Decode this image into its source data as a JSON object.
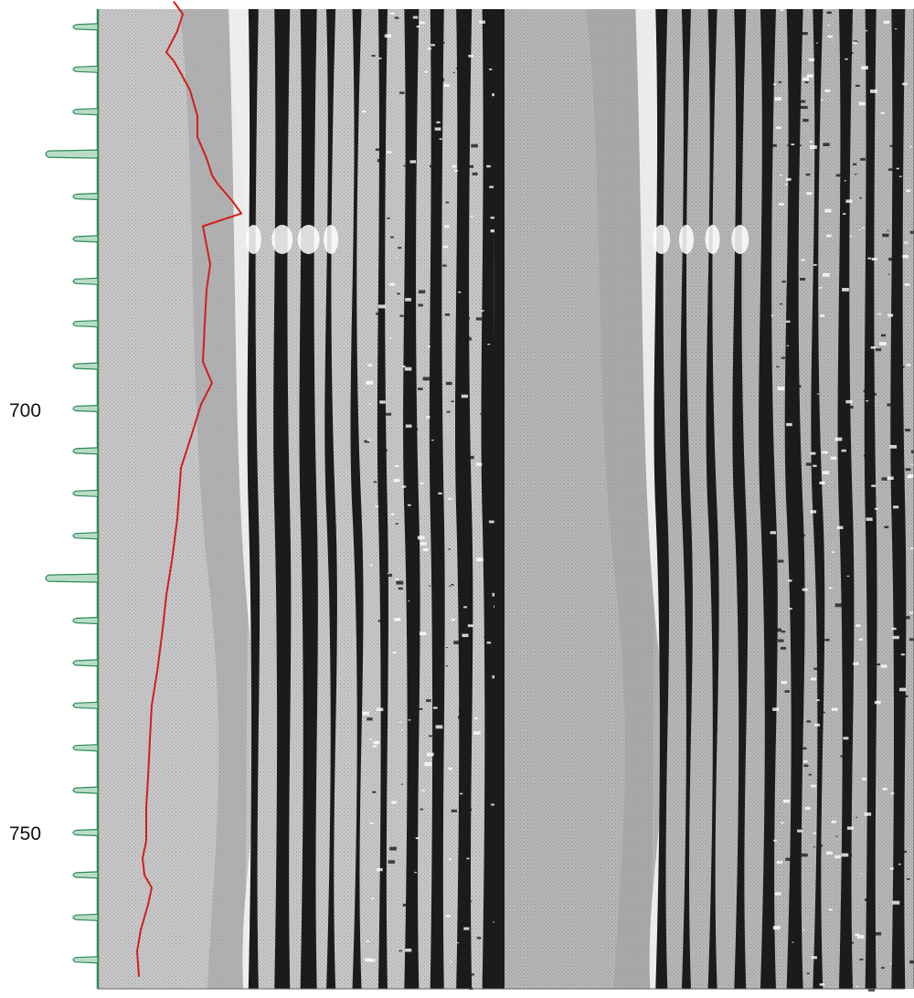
{
  "chart_data": {
    "type": "line",
    "title": "",
    "xlabel": "",
    "ylabel": "",
    "y_axis": {
      "orientation": "depth-increasing-downward",
      "range": [
        652,
        767
      ],
      "labeled_ticks": [
        {
          "value": 700,
          "label": "700"
        },
        {
          "value": 750,
          "label": "750"
        }
      ],
      "minor_tick_step": 5,
      "major_ticks": [
        670,
        720
      ]
    },
    "series": [
      {
        "role": "trace",
        "color": "#d21e1e",
        "x": [
          0.2,
          0.25,
          0.22,
          0.16,
          0.2,
          0.24,
          0.29,
          0.33,
          0.33,
          0.38,
          0.41,
          0.44,
          0.48,
          0.52,
          0.57,
          0.36,
          0.4,
          0.38,
          0.37,
          0.36,
          0.41,
          0.35,
          0.3,
          0.24,
          0.22,
          0.19,
          0.16,
          0.14,
          0.11,
          0.08,
          0.07,
          0.06,
          0.05,
          0.05,
          0.03,
          0.04,
          0.08,
          0.06,
          0.02,
          0.0,
          0.01
        ],
        "y": [
          652,
          653.5,
          655.5,
          658,
          659,
          660.5,
          662.5,
          665.5,
          668,
          670.5,
          672.5,
          673.5,
          674.5,
          675.5,
          677,
          678.5,
          683,
          686,
          690,
          694.5,
          697,
          699.5,
          703,
          707,
          713,
          718,
          722,
          726,
          731,
          735,
          739,
          743.5,
          747,
          751,
          753,
          755,
          756.5,
          758.5,
          761.5,
          764,
          767
        ]
      }
    ],
    "image_tracks": [
      {
        "name": "",
        "style": "static",
        "segment_range": [
          0.0,
          1.0
        ]
      },
      {
        "name": "",
        "style": "dynamic",
        "segment_range": [
          0.0,
          1.0
        ]
      }
    ],
    "grid": false,
    "legend": "none"
  },
  "colors": {
    "depth_axis": "#2e8a5a",
    "tick_fill": "#b9dcc6",
    "trace": "#d21e1e",
    "image_background": "#bdbdbd",
    "image_dark": "#1b1b1b",
    "image_light": "#ffffff"
  }
}
